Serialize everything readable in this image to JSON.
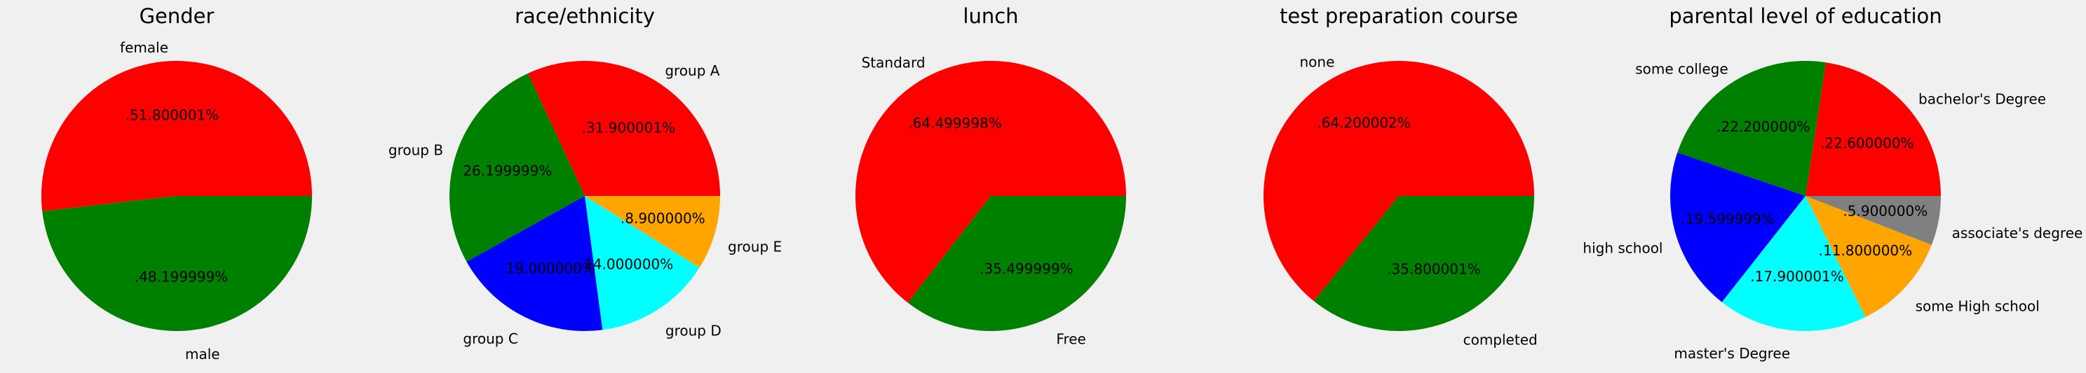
{
  "chart_data": [
    {
      "type": "pie",
      "title": "Gender",
      "labels": [
        "female",
        "male"
      ],
      "values": [
        51.800001,
        48.199999
      ],
      "pct_labels": [
        ".51.800001%",
        ".48.199999%"
      ],
      "colors": [
        "#ff0000",
        "#008000"
      ]
    },
    {
      "type": "pie",
      "title": "race/ethnicity",
      "labels": [
        "group A",
        "group B",
        "group C",
        "group D",
        "group E"
      ],
      "values": [
        31.900001,
        26.199999,
        19.0,
        14.0,
        8.9
      ],
      "pct_labels": [
        ".31.900001%",
        "26.199999%",
        ".19.000000%",
        "14.000000%",
        ".8.900000%"
      ],
      "colors": [
        "#ff0000",
        "#008000",
        "#0000ff",
        "#00ffff",
        "#ffa500"
      ]
    },
    {
      "type": "pie",
      "title": "lunch",
      "labels": [
        "Standard",
        "Free"
      ],
      "values": [
        64.499998,
        35.499999
      ],
      "pct_labels": [
        ".64.499998%",
        ".35.499999%"
      ],
      "colors": [
        "#ff0000",
        "#008000"
      ]
    },
    {
      "type": "pie",
      "title": "test preparation course",
      "labels": [
        "none",
        "completed"
      ],
      "values": [
        64.200002,
        35.800001
      ],
      "pct_labels": [
        ".64.200002%",
        ".35.800001%"
      ],
      "colors": [
        "#ff0000",
        "#008000"
      ]
    },
    {
      "type": "pie",
      "title": "parental level of education",
      "labels": [
        "bachelor's Degree",
        "some college",
        "high school",
        "master's Degree",
        "some High school",
        "associate's degree"
      ],
      "values": [
        22.6,
        22.2,
        19.599999,
        17.900001,
        11.8,
        5.9
      ],
      "pct_labels": [
        ".22.600000%",
        ".22.200000%",
        ".19.599999%",
        ".17.900001%",
        ".11.800000%",
        ".5.900000%"
      ],
      "colors": [
        "#ff0000",
        "#008000",
        "#0000ff",
        "#00ffff",
        "#ffa500",
        "#808080"
      ]
    }
  ]
}
